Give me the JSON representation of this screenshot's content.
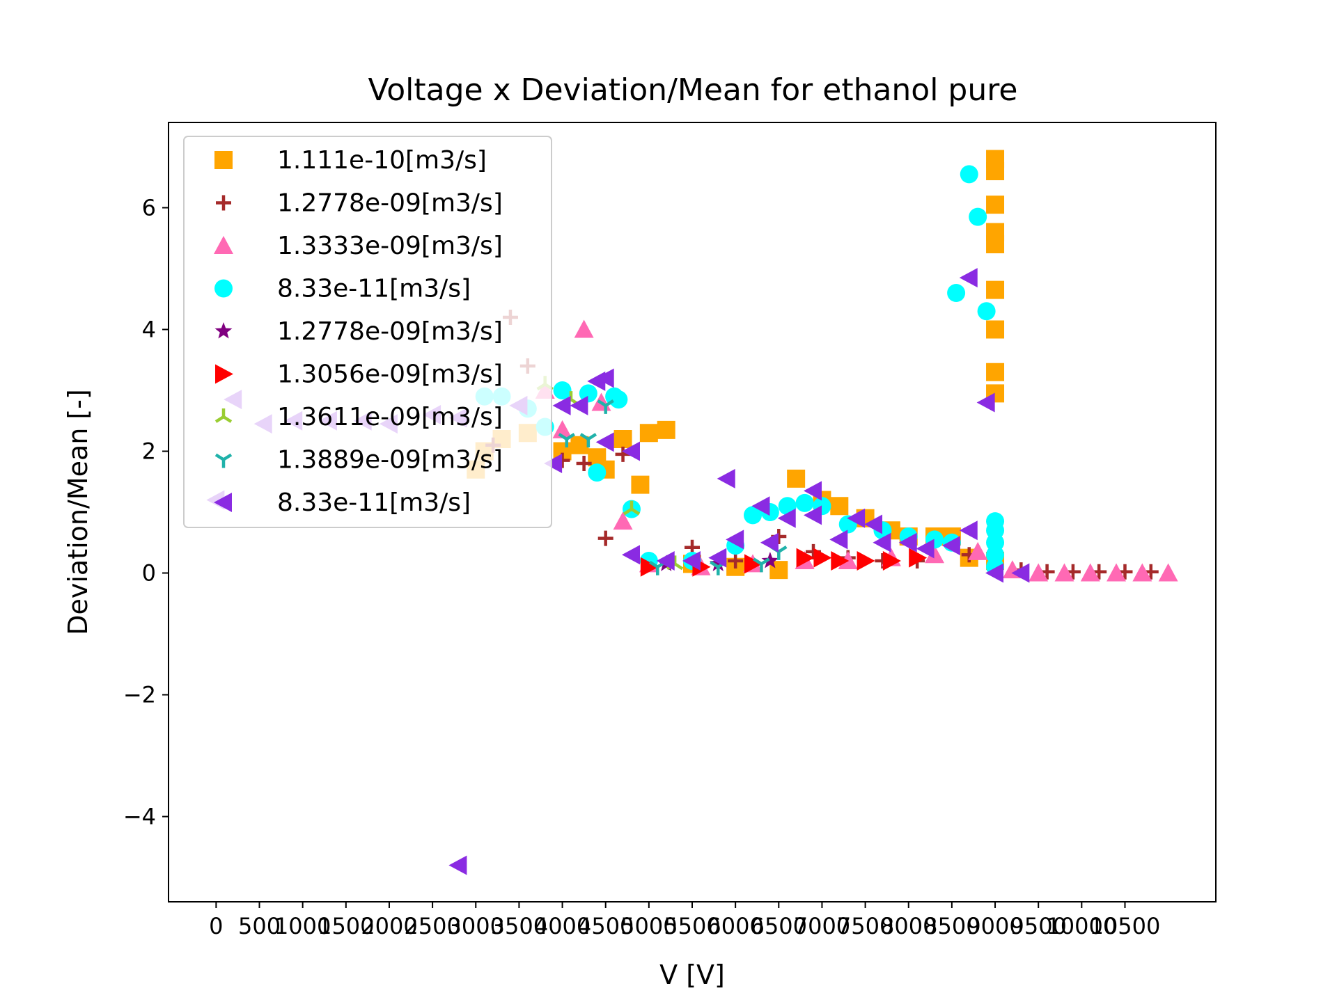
{
  "chart_data": {
    "type": "scatter",
    "title": "Voltage x Deviation/Mean for ethanol pure",
    "xlabel": "V [V]",
    "ylabel": "Deviation/Mean [-]",
    "xlim": [
      -550,
      11550
    ],
    "ylim": [
      -5.4,
      7.4
    ],
    "xticks": [
      0,
      500,
      1000,
      1500,
      2000,
      2500,
      3000,
      3500,
      4000,
      4500,
      5000,
      5500,
      6000,
      6500,
      7000,
      7500,
      8000,
      8500,
      9000,
      9500,
      10000,
      10500
    ],
    "xtick_labels": [
      "0",
      "500",
      "1000",
      "1500",
      "2000",
      "2500",
      "3000",
      "3500",
      "4000",
      "4500",
      "5000",
      "5500",
      "6000",
      "6500",
      "7000",
      "7500",
      "8000",
      "8500",
      "9000",
      "9500",
      "10000",
      "10500"
    ],
    "yticks": [
      -4,
      -2,
      0,
      2,
      4,
      6
    ],
    "ytick_labels": [
      "−4",
      "−2",
      "0",
      "2",
      "4",
      "6"
    ],
    "grid": false,
    "legend_position": "upper-left",
    "series": [
      {
        "name": "1.111e-10[m3/s]",
        "color": "#FFA500",
        "marker": "square",
        "points": [
          [
            3000,
            1.7
          ],
          [
            3100,
            2.0
          ],
          [
            3300,
            2.2
          ],
          [
            3600,
            2.3
          ],
          [
            4000,
            2.0
          ],
          [
            4200,
            2.1
          ],
          [
            4400,
            1.9
          ],
          [
            4500,
            1.7
          ],
          [
            4700,
            2.2
          ],
          [
            5000,
            2.3
          ],
          [
            5200,
            2.35
          ],
          [
            4900,
            1.45
          ],
          [
            5500,
            0.15
          ],
          [
            6000,
            0.1
          ],
          [
            6500,
            0.05
          ],
          [
            6700,
            1.55
          ],
          [
            7000,
            1.2
          ],
          [
            7200,
            1.1
          ],
          [
            7500,
            0.9
          ],
          [
            7800,
            0.7
          ],
          [
            8000,
            0.6
          ],
          [
            8300,
            0.6
          ],
          [
            8500,
            0.6
          ],
          [
            8700,
            0.25
          ],
          [
            9000,
            0.2
          ],
          [
            9000,
            6.8
          ],
          [
            9000,
            6.6
          ],
          [
            9000,
            6.05
          ],
          [
            9000,
            5.6
          ],
          [
            9000,
            5.4
          ],
          [
            9000,
            4.65
          ],
          [
            9000,
            4.0
          ],
          [
            9000,
            3.3
          ],
          [
            9000,
            2.95
          ]
        ]
      },
      {
        "name": "1.2778e-09[m3/s]",
        "color": "#A52A2A",
        "marker": "plus",
        "points": [
          [
            3400,
            4.2
          ],
          [
            3600,
            3.4
          ],
          [
            3200,
            2.1
          ],
          [
            4000,
            1.85
          ],
          [
            4250,
            1.8
          ],
          [
            4500,
            0.57
          ],
          [
            4700,
            1.95
          ],
          [
            5000,
            0.15
          ],
          [
            5500,
            0.42
          ],
          [
            6000,
            0.2
          ],
          [
            6500,
            0.6
          ],
          [
            6900,
            0.35
          ],
          [
            7300,
            0.25
          ],
          [
            7700,
            0.2
          ],
          [
            8100,
            0.2
          ],
          [
            8700,
            0.3
          ],
          [
            9000,
            0.1
          ],
          [
            9300,
            0.05
          ],
          [
            9600,
            0.02
          ],
          [
            9900,
            0.02
          ],
          [
            10200,
            0.02
          ],
          [
            10500,
            0.02
          ],
          [
            10800,
            0.02
          ]
        ]
      },
      {
        "name": "1.3333e-09[m3/s]",
        "color": "#FF69B4",
        "marker": "triangle-up",
        "points": [
          [
            4250,
            4.0
          ],
          [
            3800,
            3.0
          ],
          [
            4000,
            2.35
          ],
          [
            4450,
            2.8
          ],
          [
            4700,
            0.85
          ],
          [
            5000,
            0.15
          ],
          [
            5600,
            0.1
          ],
          [
            6200,
            0.15
          ],
          [
            6800,
            0.2
          ],
          [
            7300,
            0.2
          ],
          [
            7800,
            0.25
          ],
          [
            8300,
            0.3
          ],
          [
            8800,
            0.35
          ],
          [
            9200,
            0.05
          ],
          [
            9500,
            0.0
          ],
          [
            9800,
            0.0
          ],
          [
            10100,
            0.0
          ],
          [
            10400,
            0.0
          ],
          [
            10700,
            0.0
          ],
          [
            11000,
            0.0
          ]
        ]
      },
      {
        "name": "8.33e-11[m3/s]",
        "color": "#00FFFF",
        "marker": "circle",
        "points": [
          [
            3100,
            2.9
          ],
          [
            3300,
            2.9
          ],
          [
            3600,
            2.7
          ],
          [
            3800,
            2.4
          ],
          [
            4000,
            3.0
          ],
          [
            4300,
            2.95
          ],
          [
            4600,
            2.9
          ],
          [
            4650,
            2.85
          ],
          [
            4400,
            1.65
          ],
          [
            4800,
            1.05
          ],
          [
            5000,
            0.2
          ],
          [
            5500,
            0.2
          ],
          [
            6000,
            0.45
          ],
          [
            6200,
            0.95
          ],
          [
            6400,
            1.0
          ],
          [
            6600,
            1.1
          ],
          [
            6800,
            1.15
          ],
          [
            7000,
            1.1
          ],
          [
            7300,
            0.8
          ],
          [
            7700,
            0.7
          ],
          [
            8000,
            0.6
          ],
          [
            8300,
            0.55
          ],
          [
            8500,
            0.5
          ],
          [
            8700,
            6.55
          ],
          [
            8800,
            5.85
          ],
          [
            8550,
            4.6
          ],
          [
            8900,
            4.3
          ],
          [
            9000,
            0.85
          ],
          [
            9000,
            0.7
          ],
          [
            9000,
            0.5
          ],
          [
            9000,
            0.3
          ],
          [
            9000,
            0.1
          ]
        ]
      },
      {
        "name": "1.2778e-09[m3/s]",
        "color": "#800080",
        "marker": "star",
        "points": [
          [
            5200,
            0.15
          ],
          [
            5800,
            0.15
          ],
          [
            6400,
            0.2
          ]
        ]
      },
      {
        "name": "1.3056e-09[m3/s]",
        "color": "#FF0000",
        "marker": "triangle-right",
        "points": [
          [
            5000,
            0.1
          ],
          [
            5600,
            0.1
          ],
          [
            6200,
            0.15
          ],
          [
            6800,
            0.25
          ],
          [
            7000,
            0.25
          ],
          [
            7200,
            0.2
          ],
          [
            7500,
            0.2
          ],
          [
            7800,
            0.2
          ],
          [
            8100,
            0.25
          ]
        ]
      },
      {
        "name": "1.3611e-09[m3/s]",
        "color": "#9ACD32",
        "marker": "tri-up",
        "points": [
          [
            3800,
            3.1
          ],
          [
            4100,
            2.85
          ],
          [
            4800,
            1.05
          ],
          [
            5300,
            0.15
          ]
        ]
      },
      {
        "name": "1.3889e-09[m3/s]",
        "color": "#20B2AA",
        "marker": "tri-down",
        "points": [
          [
            4050,
            2.2
          ],
          [
            4300,
            2.2
          ],
          [
            4500,
            2.75
          ],
          [
            5100,
            0.1
          ],
          [
            5800,
            0.1
          ],
          [
            6300,
            0.15
          ],
          [
            6500,
            0.35
          ]
        ]
      },
      {
        "name": "8.33e-11[m3/s]",
        "color": "#8A2BE2",
        "marker": "triangle-left",
        "points": [
          [
            0,
            1.2
          ],
          [
            200,
            2.85
          ],
          [
            550,
            2.45
          ],
          [
            900,
            2.5
          ],
          [
            1300,
            2.5
          ],
          [
            1700,
            2.5
          ],
          [
            2000,
            2.45
          ],
          [
            2500,
            2.6
          ],
          [
            2800,
            2.55
          ],
          [
            2800,
            -4.8
          ],
          [
            3500,
            2.75
          ],
          [
            3900,
            1.8
          ],
          [
            4000,
            2.75
          ],
          [
            4200,
            2.75
          ],
          [
            4400,
            3.15
          ],
          [
            4500,
            3.2
          ],
          [
            4500,
            2.15
          ],
          [
            4800,
            2.0
          ],
          [
            4800,
            0.3
          ],
          [
            5200,
            0.2
          ],
          [
            5500,
            0.2
          ],
          [
            5800,
            0.25
          ],
          [
            5900,
            1.55
          ],
          [
            6000,
            0.55
          ],
          [
            6300,
            1.1
          ],
          [
            6400,
            0.5
          ],
          [
            6600,
            0.9
          ],
          [
            6900,
            1.35
          ],
          [
            6900,
            0.95
          ],
          [
            7200,
            0.55
          ],
          [
            7400,
            0.9
          ],
          [
            7600,
            0.8
          ],
          [
            7700,
            0.5
          ],
          [
            8000,
            0.5
          ],
          [
            8200,
            0.4
          ],
          [
            8500,
            0.45
          ],
          [
            8700,
            0.7
          ],
          [
            8700,
            4.85
          ],
          [
            8900,
            2.8
          ],
          [
            9000,
            0.0
          ],
          [
            9300,
            0.0
          ]
        ]
      }
    ]
  }
}
